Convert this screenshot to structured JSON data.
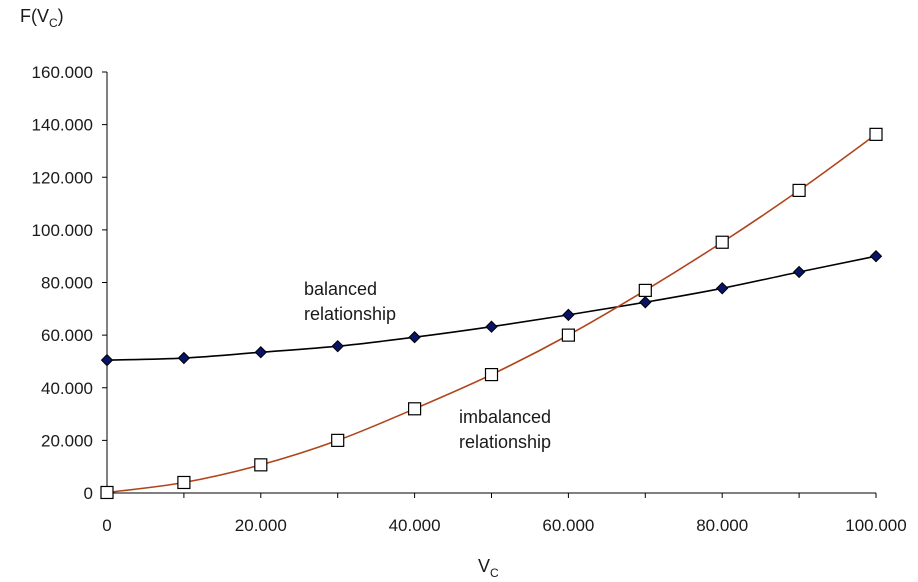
{
  "chart_data": {
    "type": "line",
    "ylabel": {
      "main": "F(V",
      "sub": "C",
      "close": ")"
    },
    "xlabel": {
      "main": "V",
      "sub": "C"
    },
    "xlim": [
      0,
      100
    ],
    "ylim": [
      0,
      160
    ],
    "x_ticks": [
      {
        "value": 0,
        "label": "0"
      },
      {
        "value": 20,
        "label": "20.000"
      },
      {
        "value": 40,
        "label": "40.000"
      },
      {
        "value": 60,
        "label": "60.000"
      },
      {
        "value": 80,
        "label": "80.000"
      },
      {
        "value": 100,
        "label": "100.000"
      }
    ],
    "y_ticks": [
      {
        "value": 0,
        "label": "0"
      },
      {
        "value": 20,
        "label": "20.000"
      },
      {
        "value": 40,
        "label": "40.000"
      },
      {
        "value": 60,
        "label": "60.000"
      },
      {
        "value": 80,
        "label": "80.000"
      },
      {
        "value": 100,
        "label": "100.000"
      },
      {
        "value": 120,
        "label": "120.000"
      },
      {
        "value": 140,
        "label": "140.000"
      },
      {
        "value": 160,
        "label": "160.000"
      }
    ],
    "grid": false,
    "series": [
      {
        "key": "balanced",
        "color": "#000000",
        "marker": "diamond",
        "marker_fill": "#0a1466",
        "x": [
          0,
          10,
          20,
          30,
          40,
          50,
          60,
          70,
          80,
          90,
          100
        ],
        "y": [
          50.5,
          51.3,
          53.5,
          55.8,
          59.2,
          63.2,
          67.7,
          72.5,
          77.8,
          84.0,
          90.0
        ]
      },
      {
        "key": "imbalanced",
        "color": "#b0441a",
        "marker": "square",
        "marker_fill": "#ffffff",
        "x": [
          0,
          10,
          20,
          30,
          40,
          50,
          60,
          70,
          80,
          90,
          100
        ],
        "y": [
          0.2,
          4.0,
          10.7,
          20.0,
          32.0,
          45.0,
          60.0,
          77.0,
          95.3,
          115.0,
          136.3
        ]
      }
    ],
    "annotations": [
      {
        "key": "balanced",
        "lines": [
          "balanced",
          "relationship"
        ]
      },
      {
        "key": "imbalanced",
        "lines": [
          "imbalanced",
          "relationship"
        ]
      }
    ]
  }
}
